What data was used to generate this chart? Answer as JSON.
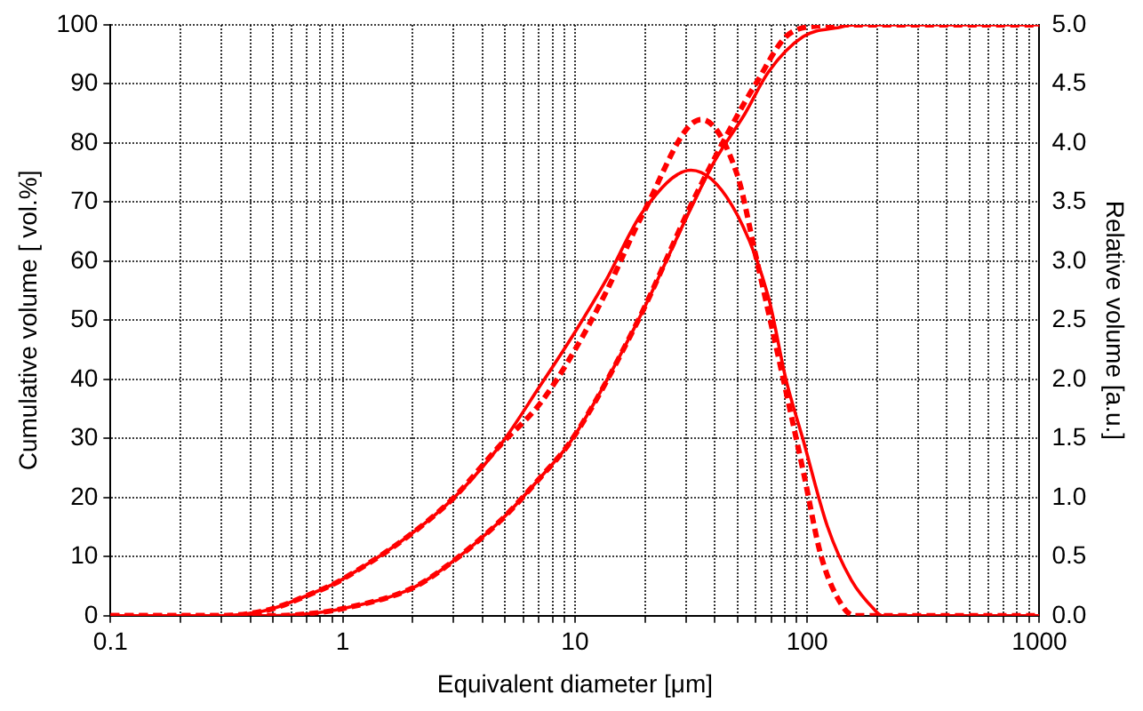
{
  "chart_data": {
    "type": "line",
    "xlabel": "Equivalent diameter [μm]",
    "ylabel": "Cumulative volume [ vol.%]",
    "y2label": "Relative volume [a.u.]",
    "log": "x",
    "grid": true,
    "legend": false,
    "marker": "none",
    "xlim": [
      0.1,
      1000
    ],
    "xticks": [
      0.1,
      {
        "value": 0.2,
        "label": null
      },
      {
        "value": 0.3,
        "label": null
      },
      {
        "value": 0.4,
        "label": null
      },
      {
        "value": 0.5,
        "label": null
      },
      {
        "value": 0.6,
        "label": null
      },
      {
        "value": 0.7,
        "label": null
      },
      {
        "value": 0.8,
        "label": null
      },
      {
        "value": 0.9,
        "label": null
      },
      1,
      {
        "value": 2,
        "label": null
      },
      {
        "value": 3,
        "label": null
      },
      {
        "value": 4,
        "label": null
      },
      {
        "value": 5,
        "label": null
      },
      {
        "value": 6,
        "label": null
      },
      {
        "value": 7,
        "label": null
      },
      {
        "value": 8,
        "label": null
      },
      {
        "value": 9,
        "label": null
      },
      10,
      {
        "value": 20,
        "label": null
      },
      {
        "value": 30,
        "label": null
      },
      {
        "value": 40,
        "label": null
      },
      {
        "value": 50,
        "label": null
      },
      {
        "value": 60,
        "label": null
      },
      {
        "value": 70,
        "label": null
      },
      {
        "value": 80,
        "label": null
      },
      {
        "value": 90,
        "label": null
      },
      100,
      {
        "value": 200,
        "label": null
      },
      {
        "value": 300,
        "label": null
      },
      {
        "value": 400,
        "label": null
      },
      {
        "value": 500,
        "label": null
      },
      {
        "value": 600,
        "label": null
      },
      {
        "value": 700,
        "label": null
      },
      {
        "value": 800,
        "label": null
      },
      {
        "value": 900,
        "label": null
      },
      1000
    ],
    "ylim": [
      0,
      100
    ],
    "yticks": [
      0,
      10,
      20,
      30,
      40,
      50,
      60,
      70,
      80,
      90,
      100
    ],
    "y2lim": [
      0,
      5
    ],
    "y2ticks": [
      {
        "value": 0,
        "label": "0.0"
      },
      {
        "value": 0.5,
        "label": "0.5"
      },
      {
        "value": 1,
        "label": "1.0"
      },
      {
        "value": 1.5,
        "label": "1.5"
      },
      {
        "value": 2,
        "label": "2.0"
      },
      {
        "value": 2.5,
        "label": "2.5"
      },
      {
        "value": 3,
        "label": "3.0"
      },
      {
        "value": 3.5,
        "label": "3.5"
      },
      {
        "value": 4,
        "label": "4.0"
      },
      {
        "value": 4.5,
        "label": "4.5"
      },
      {
        "value": 5,
        "label": "5.0"
      }
    ],
    "series": [
      {
        "color": "#ff0000",
        "line_style": "solid",
        "x": [
          0.1,
          0.5,
          0.7,
          1,
          2,
          2.8,
          4.75,
          7.1,
          9.7,
          18.5,
          31.6,
          40,
          54,
          68,
          96,
          138,
          160,
          1000
        ],
        "values": [
          0,
          0,
          0.3,
          1.2,
          4.7,
          8.4,
          16,
          23.4,
          29.8,
          49.6,
          69,
          77,
          85,
          92,
          98,
          99.6,
          100,
          100
        ]
      },
      {
        "color": "#ff0000",
        "line_style": "dashed",
        "x": [
          0.1,
          0.5,
          0.7,
          1,
          2,
          2.8,
          4.75,
          7.1,
          9.7,
          18.5,
          31.6,
          40,
          54,
          60,
          81,
          110,
          150,
          1000
        ],
        "values": [
          0,
          0,
          0.3,
          1.2,
          4.7,
          8.4,
          16,
          23.4,
          29.8,
          49.6,
          69.5,
          77.5,
          87,
          90,
          98,
          99.8,
          100,
          100
        ]
      },
      {
        "color": "#ff0000",
        "line_style": "solid",
        "axis": "y2",
        "x": [
          0.1,
          0.3,
          0.4,
          0.5,
          0.7,
          1,
          2.8,
          4.75,
          7.1,
          10,
          13.7,
          19.6,
          31.6,
          47.5,
          68,
          81,
          96,
          122,
          155,
          195,
          210,
          1000
        ],
        "values": [
          0,
          0,
          0.02,
          0.06,
          0.17,
          0.31,
          0.94,
          1.44,
          1.95,
          2.4,
          2.85,
          3.42,
          3.77,
          3.47,
          2.7,
          2,
          1.49,
          0.76,
          0.3,
          0.05,
          0,
          0
        ]
      },
      {
        "color": "#ff0000",
        "line_style": "dashed",
        "axis": "y2",
        "x": [
          0.1,
          0.3,
          0.4,
          0.5,
          0.7,
          1,
          2.8,
          4.75,
          7.1,
          10,
          13.7,
          19.6,
          35,
          50,
          60,
          81,
          96,
          115,
          142,
          160,
          1000
        ],
        "values": [
          0,
          0,
          0.02,
          0.06,
          0.17,
          0.31,
          0.94,
          1.44,
          1.8,
          2.25,
          2.75,
          3.4,
          4.2,
          3.73,
          3.05,
          1.9,
          1.23,
          0.5,
          0.08,
          0,
          0
        ]
      }
    ]
  }
}
